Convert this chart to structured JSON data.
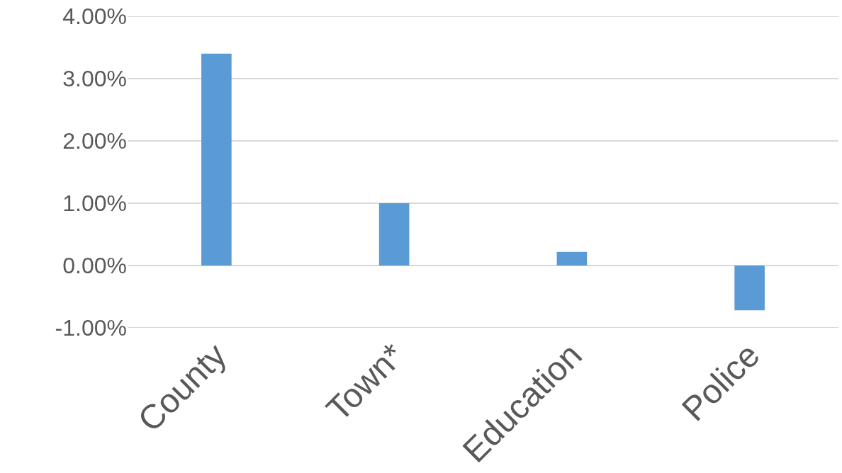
{
  "chart_data": {
    "type": "bar",
    "categories": [
      "County",
      "Town*",
      "Education",
      "Police"
    ],
    "values": [
      3.4,
      1.0,
      0.22,
      -0.72
    ],
    "color": "#5b9bd5",
    "ylim": [
      -1,
      4
    ],
    "yticks": [
      {
        "value": -1,
        "label": "-1.00%"
      },
      {
        "value": 0,
        "label": "0.00%"
      },
      {
        "value": 1,
        "label": "1.00%"
      },
      {
        "value": 2,
        "label": "2.00%"
      },
      {
        "value": 3,
        "label": "3.00%"
      },
      {
        "value": 4,
        "label": "4.00%"
      }
    ],
    "grid": "y"
  }
}
